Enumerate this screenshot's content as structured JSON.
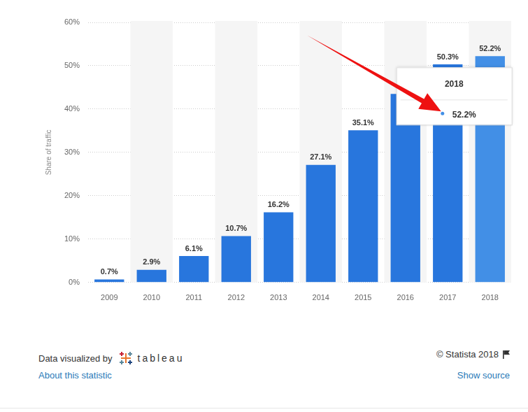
{
  "chart_data": {
    "type": "bar",
    "categories": [
      "2009",
      "2010",
      "2011",
      "2012",
      "2013",
      "2014",
      "2015",
      "2016",
      "2017",
      "2018"
    ],
    "values": [
      0.7,
      2.9,
      6.1,
      10.7,
      16.2,
      27.1,
      35.1,
      43.5,
      50.3,
      52.2
    ],
    "value_labels": [
      "0.7%",
      "2.9%",
      "6.1%",
      "10.7%",
      "16.2%",
      "27.1%",
      "35.1%",
      null,
      "50.3%",
      "52.2%"
    ],
    "colors": [
      "#2876dd",
      "#2876dd",
      "#2876dd",
      "#2876dd",
      "#2876dd",
      "#2876dd",
      "#2876dd",
      "#2876dd",
      "#2876dd",
      "#428fe6"
    ],
    "y_label": "Share of traffic",
    "ylim": [
      0,
      60
    ],
    "yticks": [
      {
        "value": 0,
        "label": "0%"
      },
      {
        "value": 10,
        "label": "10%"
      },
      {
        "value": 20,
        "label": "20%"
      },
      {
        "value": 30,
        "label": "30%"
      },
      {
        "value": 40,
        "label": "40%"
      },
      {
        "value": 50,
        "label": "50%"
      },
      {
        "value": 60,
        "label": "60%"
      }
    ],
    "grid": true,
    "data_labels": true,
    "annotations": [
      {
        "title": "2018",
        "text": "52.2%"
      }
    ]
  },
  "footer": {
    "credit": "Data visualized by",
    "logo": "tableau",
    "copyright": "© Statista 2018",
    "links": [
      "About this statistic",
      "Show source"
    ]
  }
}
